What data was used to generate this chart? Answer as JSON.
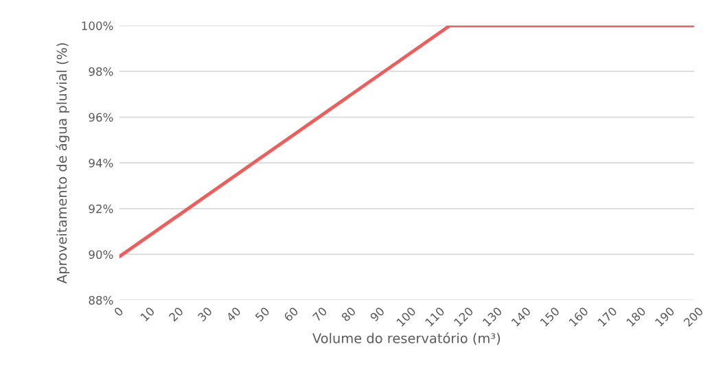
{
  "chart_data": {
    "type": "line",
    "xlabel": "Volume do reservatório (m³)",
    "ylabel": "Aproveitamento de água pluvial (%)",
    "x": [
      0,
      115,
      200
    ],
    "series": [
      {
        "color": "#ee5d5a",
        "values": [
          89.9,
          100,
          100
        ]
      }
    ],
    "xlim": [
      0,
      200
    ],
    "xticks": [
      0,
      10,
      20,
      30,
      40,
      50,
      60,
      70,
      80,
      90,
      100,
      110,
      120,
      130,
      140,
      150,
      160,
      170,
      180,
      190,
      200
    ],
    "ylim": [
      88,
      100
    ],
    "yticks": [
      {
        "value": 88,
        "label": "88%"
      },
      {
        "value": 90,
        "label": "90%"
      },
      {
        "value": 92,
        "label": "92%"
      },
      {
        "value": 94,
        "label": "94%"
      },
      {
        "value": 96,
        "label": "96%"
      },
      {
        "value": 98,
        "label": "98%"
      },
      {
        "value": 100,
        "label": "100%"
      }
    ],
    "grid": "y",
    "line_style": "solid",
    "marker": "none"
  }
}
